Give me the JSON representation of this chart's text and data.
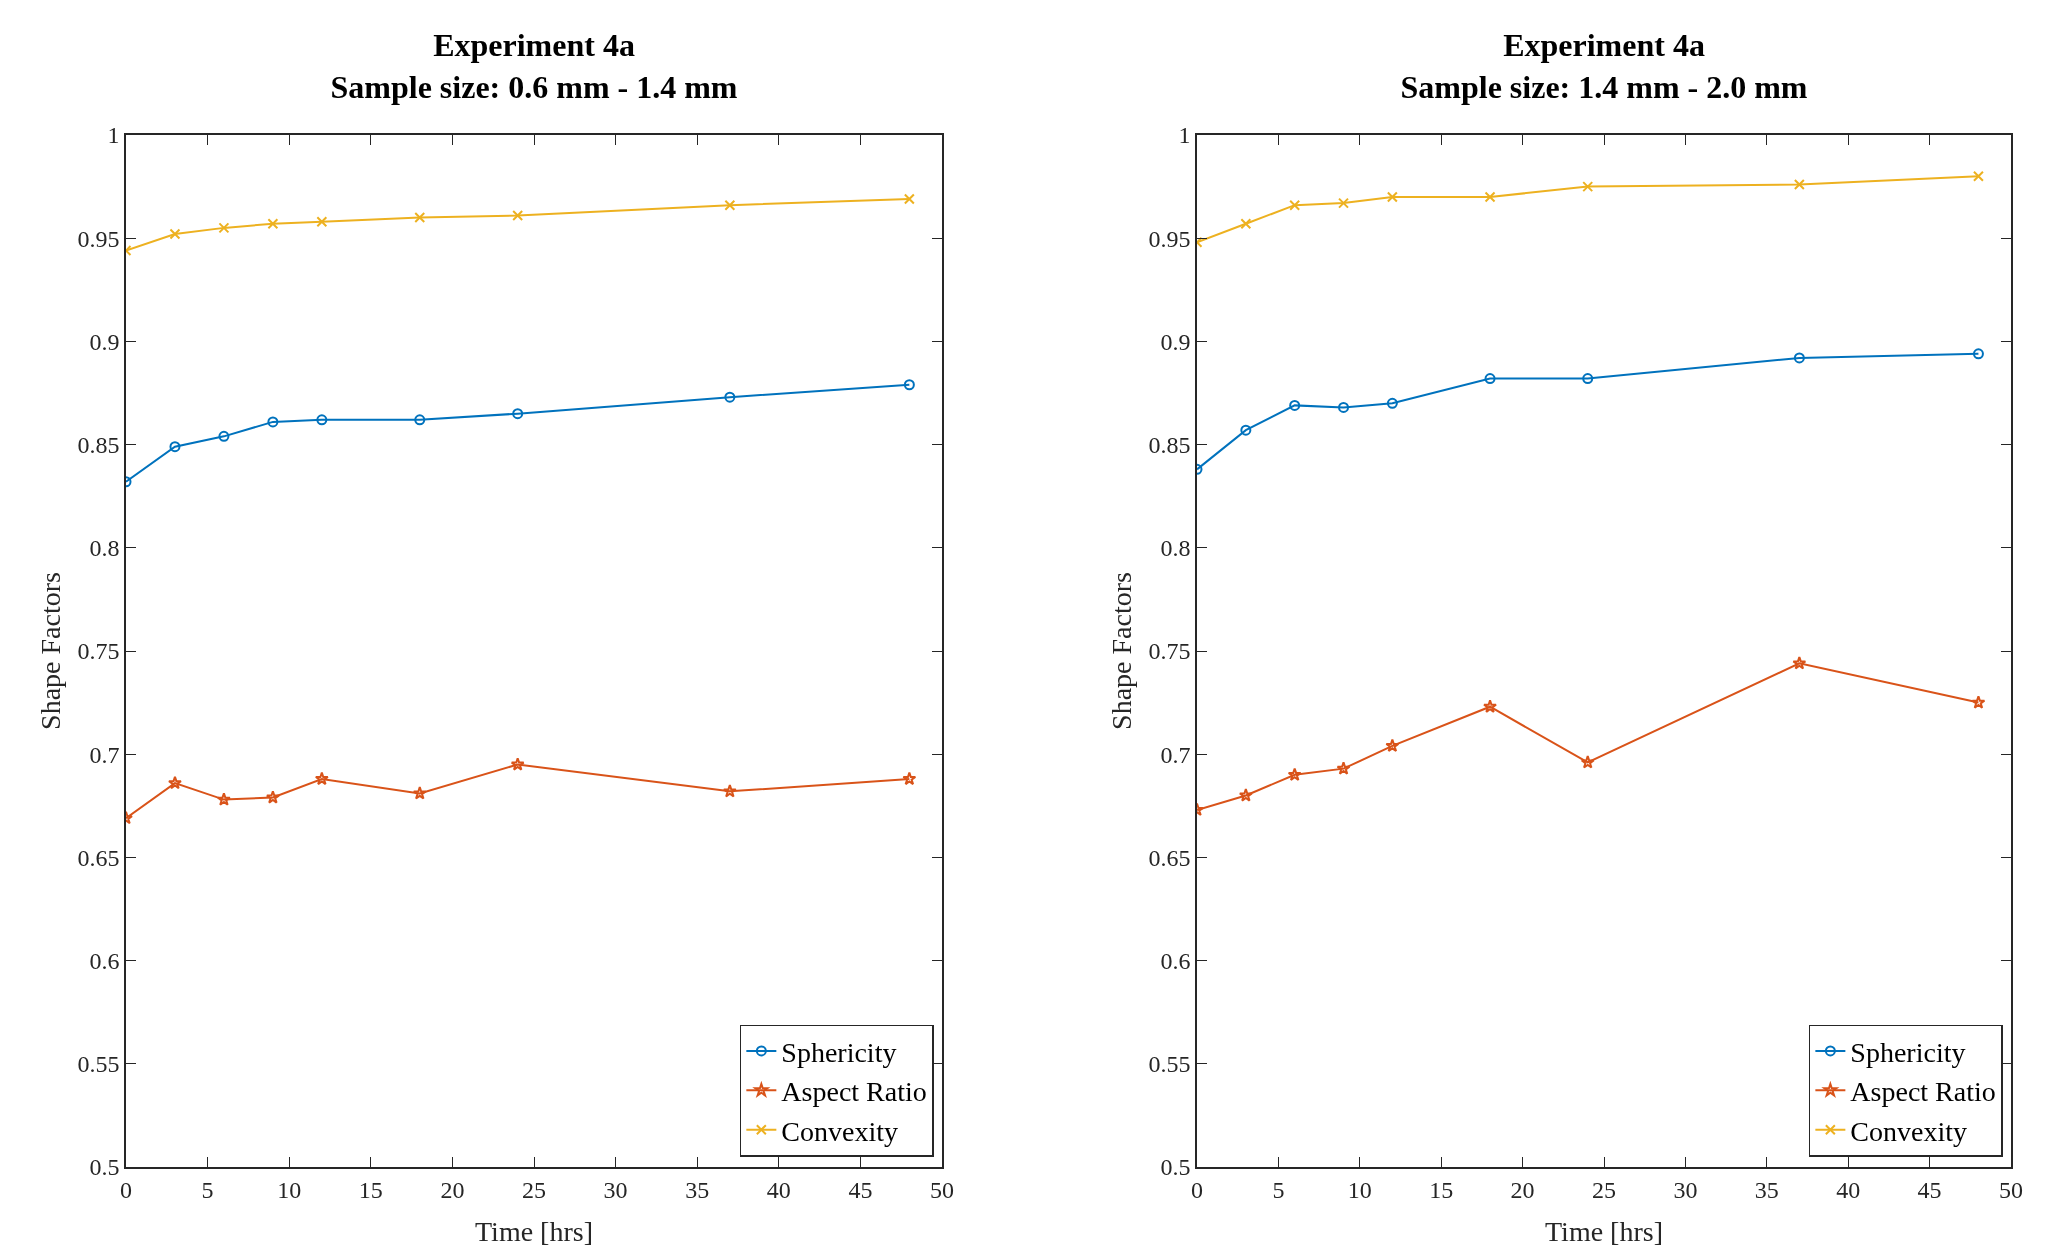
{
  "chart_data": [
    {
      "type": "line",
      "title": "Experiment 4a",
      "subtitle": "Sample size: 0.6 mm - 1.4 mm",
      "xlabel": "Time [hrs]",
      "ylabel": "Shape Factors",
      "x": [
        0,
        3,
        6,
        9,
        12,
        18,
        24,
        37,
        48
      ],
      "xlim": [
        0,
        50
      ],
      "xticks": [
        0,
        5,
        10,
        15,
        20,
        25,
        30,
        35,
        40,
        45,
        50
      ],
      "ylim": [
        0.5,
        1
      ],
      "yticks": [
        0.5,
        0.55,
        0.6,
        0.65,
        0.7,
        0.75,
        0.8,
        0.85,
        0.9,
        0.95,
        1
      ],
      "grid": false,
      "legend": "bottom right",
      "line_style": "solid",
      "series": [
        {
          "name": "Sphericity",
          "color": "#0072bd",
          "marker": "circle",
          "values": [
            0.832,
            0.849,
            0.854,
            0.861,
            0.862,
            0.862,
            0.865,
            0.873,
            0.879
          ]
        },
        {
          "name": "Aspect Ratio",
          "color": "#d95319",
          "marker": "star",
          "values": [
            0.669,
            0.686,
            0.678,
            0.679,
            0.688,
            0.681,
            0.695,
            0.682,
            0.688
          ]
        },
        {
          "name": "Convexity",
          "color": "#edb120",
          "marker": "cross",
          "values": [
            0.944,
            0.952,
            0.955,
            0.957,
            0.958,
            0.96,
            0.961,
            0.966,
            0.969
          ]
        }
      ]
    },
    {
      "type": "line",
      "title": "Experiment 4a",
      "subtitle": "Sample size: 1.4 mm - 2.0 mm",
      "xlabel": "Time [hrs]",
      "ylabel": "Shape Factors",
      "x": [
        0,
        3,
        6,
        9,
        12,
        18,
        24,
        37,
        48
      ],
      "xlim": [
        0,
        50
      ],
      "xticks": [
        0,
        5,
        10,
        15,
        20,
        25,
        30,
        35,
        40,
        45,
        50
      ],
      "ylim": [
        0.5,
        1
      ],
      "yticks": [
        0.5,
        0.55,
        0.6,
        0.65,
        0.7,
        0.75,
        0.8,
        0.85,
        0.9,
        0.95,
        1
      ],
      "grid": false,
      "legend": "bottom right",
      "line_style": "solid",
      "series": [
        {
          "name": "Sphericity",
          "color": "#0072bd",
          "marker": "circle",
          "values": [
            0.838,
            0.857,
            0.869,
            0.868,
            0.87,
            0.882,
            0.882,
            0.892,
            0.894
          ]
        },
        {
          "name": "Aspect Ratio",
          "color": "#d95319",
          "marker": "star",
          "values": [
            0.673,
            0.68,
            0.69,
            0.693,
            0.704,
            0.723,
            0.696,
            0.744,
            0.725
          ]
        },
        {
          "name": "Convexity",
          "color": "#edb120",
          "marker": "cross",
          "values": [
            0.948,
            0.957,
            0.966,
            0.967,
            0.97,
            0.97,
            0.975,
            0.976,
            0.98
          ]
        }
      ]
    }
  ]
}
